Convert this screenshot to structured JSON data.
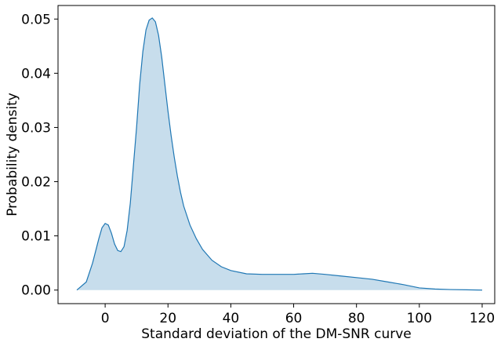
{
  "chart_data": {
    "type": "area",
    "xlabel": "Standard deviation of the DM-SNR curve",
    "ylabel": "Probability density",
    "xlim": [
      -15,
      124
    ],
    "ylim": [
      -0.0025,
      0.0525
    ],
    "xticks": [
      0,
      20,
      40,
      60,
      80,
      100,
      120
    ],
    "yticks": [
      0.0,
      0.01,
      0.02,
      0.03,
      0.04,
      0.05
    ],
    "ytick_labels": [
      "0.00",
      "0.01",
      "0.02",
      "0.03",
      "0.04",
      "0.05"
    ],
    "grid": false,
    "colors": {
      "line": "#1f77b4",
      "fill": "#1f77b4",
      "fill_opacity": 0.25
    },
    "series": [
      {
        "x": [
          -9,
          -6,
          -4,
          -2,
          -1,
          0,
          1,
          2,
          3,
          4,
          5,
          6,
          7,
          8,
          9,
          10,
          11,
          12,
          13,
          14,
          15,
          16,
          17,
          18,
          19,
          20,
          21,
          22,
          23,
          24,
          25,
          27,
          29,
          31,
          34,
          37,
          40,
          45,
          50,
          55,
          60,
          63,
          66,
          70,
          75,
          80,
          85,
          90,
          95,
          100,
          105,
          110,
          115,
          120
        ],
        "y": [
          0.0,
          0.0015,
          0.005,
          0.0095,
          0.0115,
          0.0123,
          0.012,
          0.0105,
          0.0085,
          0.0073,
          0.0071,
          0.008,
          0.011,
          0.016,
          0.023,
          0.03,
          0.038,
          0.044,
          0.048,
          0.0498,
          0.0502,
          0.0495,
          0.047,
          0.043,
          0.038,
          0.033,
          0.0285,
          0.0245,
          0.021,
          0.018,
          0.0155,
          0.012,
          0.0095,
          0.0075,
          0.0055,
          0.0043,
          0.0036,
          0.003,
          0.0029,
          0.0029,
          0.0029,
          0.003,
          0.0031,
          0.0029,
          0.0026,
          0.0023,
          0.002,
          0.0015,
          0.001,
          0.0004,
          0.0002,
          0.0001,
          5e-05,
          0.0
        ]
      }
    ]
  }
}
